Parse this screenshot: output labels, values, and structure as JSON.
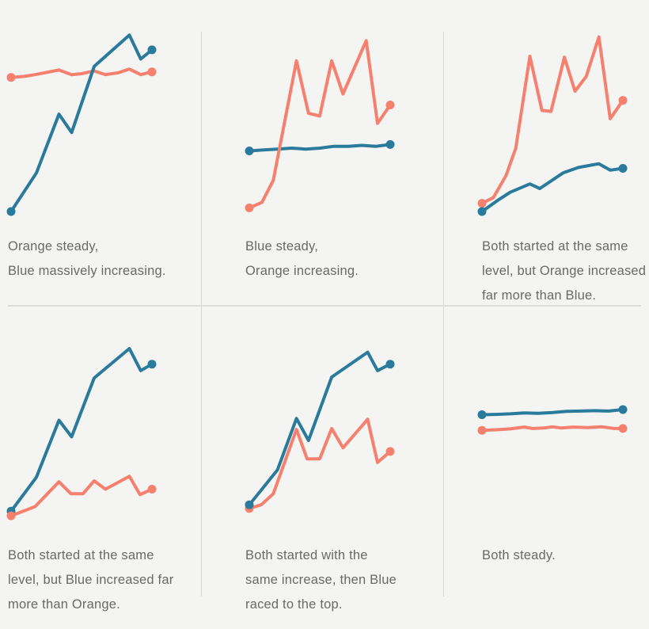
{
  "page": {
    "background": "#f4f4f2",
    "figure_type": "small-multiples line charts, 2 rows x 3 columns, no axes or labels"
  },
  "colors": {
    "blue": "#2a7a9b",
    "orange": "#f5806e",
    "caption": "#696969",
    "divider": "#d8d8d8"
  },
  "chart_data": [
    {
      "type": "line",
      "caption": "Orange steady,\nBlue massively increasing.",
      "x_range": [
        0,
        10
      ],
      "y_range": [
        0,
        100
      ],
      "grid": false,
      "axes": "hidden",
      "legend": "none",
      "series": [
        {
          "name": "Orange",
          "color_key": "orange",
          "end_dots": true,
          "points": [
            [
              0,
              76
            ],
            [
              0.9,
              76.5
            ],
            [
              1.7,
              77.5
            ],
            [
              3.4,
              80
            ],
            [
              4.3,
              77.5
            ],
            [
              5,
              78
            ],
            [
              5.9,
              79.5
            ],
            [
              6.7,
              77.5
            ],
            [
              7.6,
              78.5
            ],
            [
              8.4,
              80.5
            ],
            [
              9.2,
              77.5
            ],
            [
              10,
              79
            ]
          ]
        },
        {
          "name": "Blue",
          "color_key": "blue",
          "end_dots": true,
          "points": [
            [
              0,
              3
            ],
            [
              1.8,
              24
            ],
            [
              3.4,
              56
            ],
            [
              4.3,
              46
            ],
            [
              5.9,
              82
            ],
            [
              8.4,
              99
            ],
            [
              9.2,
              86
            ],
            [
              10,
              91
            ]
          ]
        }
      ]
    },
    {
      "type": "line",
      "caption": "Blue steady,\nOrange increasing.",
      "x_range": [
        0,
        10
      ],
      "y_range": [
        0,
        100
      ],
      "grid": false,
      "axes": "hidden",
      "legend": "none",
      "series": [
        {
          "name": "Blue",
          "color_key": "blue",
          "end_dots": true,
          "points": [
            [
              0,
              36
            ],
            [
              1,
              36.5
            ],
            [
              2,
              37
            ],
            [
              3,
              37.5
            ],
            [
              4,
              37
            ],
            [
              5,
              37.5
            ],
            [
              6,
              38.5
            ],
            [
              7,
              38.5
            ],
            [
              8,
              39
            ],
            [
              9,
              38.5
            ],
            [
              10,
              39.5
            ]
          ]
        },
        {
          "name": "Orange",
          "color_key": "orange",
          "end_dots": true,
          "points": [
            [
              0,
              5
            ],
            [
              0.9,
              8
            ],
            [
              1.7,
              20
            ],
            [
              3.35,
              85
            ],
            [
              4.2,
              56.5
            ],
            [
              5,
              55
            ],
            [
              5.85,
              85
            ],
            [
              6.65,
              67
            ],
            [
              8.3,
              96
            ],
            [
              9.1,
              51
            ],
            [
              10,
              61
            ]
          ]
        }
      ]
    },
    {
      "type": "line",
      "caption": "Both started at the same\nlevel, but Orange increased\nfar more than Blue.",
      "x_range": [
        0,
        10
      ],
      "y_range": [
        0,
        100
      ],
      "grid": false,
      "axes": "hidden",
      "legend": "none",
      "series": [
        {
          "name": "Orange",
          "color_key": "orange",
          "end_dots": true,
          "points": [
            [
              0,
              7.5
            ],
            [
              0.8,
              10.5
            ],
            [
              1.7,
              22.5
            ],
            [
              2.4,
              37.5
            ],
            [
              3.4,
              87.5
            ],
            [
              4.25,
              58
            ],
            [
              4.9,
              57.5
            ],
            [
              5.85,
              87
            ],
            [
              6.6,
              68.5
            ],
            [
              7.4,
              76.5
            ],
            [
              8.3,
              98
            ],
            [
              9.1,
              53.5
            ],
            [
              10,
              63.5
            ]
          ]
        },
        {
          "name": "Blue",
          "color_key": "blue",
          "end_dots": true,
          "points": [
            [
              0,
              3
            ],
            [
              1.1,
              9
            ],
            [
              2,
              13.5
            ],
            [
              3.4,
              18
            ],
            [
              4.1,
              15.5
            ],
            [
              5.75,
              24
            ],
            [
              6.85,
              27
            ],
            [
              8.3,
              29
            ],
            [
              9.1,
              25.5
            ],
            [
              10,
              26.5
            ]
          ]
        }
      ]
    },
    {
      "type": "line",
      "caption": "Both started at the same\nlevel, but Blue increased far\nmore than Orange.",
      "x_range": [
        0,
        10
      ],
      "y_range": [
        0,
        100
      ],
      "grid": false,
      "axes": "hidden",
      "legend": "none",
      "series": [
        {
          "name": "Blue",
          "color_key": "blue",
          "end_dots": true,
          "points": [
            [
              0,
              11.5
            ],
            [
              1.8,
              30
            ],
            [
              3.4,
              61
            ],
            [
              4.3,
              52
            ],
            [
              5.9,
              84
            ],
            [
              8.4,
              100
            ],
            [
              9.2,
              88
            ],
            [
              10,
              91.5
            ]
          ]
        },
        {
          "name": "Orange",
          "color_key": "orange",
          "end_dots": true,
          "points": [
            [
              0,
              9
            ],
            [
              1.7,
              14
            ],
            [
              3.4,
              27.5
            ],
            [
              4.25,
              21
            ],
            [
              5.1,
              21
            ],
            [
              5.9,
              28
            ],
            [
              6.7,
              23.5
            ],
            [
              8.4,
              30.5
            ],
            [
              9.15,
              20.5
            ],
            [
              10,
              23.5
            ]
          ]
        }
      ]
    },
    {
      "type": "line",
      "caption": "Both started with the\nsame increase, then Blue\nraced to the top.",
      "x_range": [
        0,
        10
      ],
      "y_range": [
        0,
        100
      ],
      "grid": false,
      "axes": "hidden",
      "legend": "none",
      "series": [
        {
          "name": "Orange",
          "color_key": "orange",
          "end_dots": true,
          "points": [
            [
              0,
              13
            ],
            [
              0.85,
              15
            ],
            [
              1.7,
              21
            ],
            [
              3.35,
              56
            ],
            [
              4.1,
              40
            ],
            [
              5,
              40
            ],
            [
              5.85,
              56.5
            ],
            [
              6.65,
              46
            ],
            [
              8.4,
              61.5
            ],
            [
              9.1,
              38
            ],
            [
              10,
              44
            ]
          ]
        },
        {
          "name": "Blue",
          "color_key": "blue",
          "end_dots": true,
          "points": [
            [
              0,
              15
            ],
            [
              1,
              24.5
            ],
            [
              2,
              34
            ],
            [
              3.35,
              62
            ],
            [
              4.2,
              50
            ],
            [
              5.85,
              84.5
            ],
            [
              8.4,
              98
            ],
            [
              9.1,
              88
            ],
            [
              10,
              91.5
            ]
          ]
        }
      ]
    },
    {
      "type": "line",
      "caption": "Both steady.",
      "x_range": [
        0,
        10
      ],
      "y_range": [
        0,
        100
      ],
      "grid": false,
      "axes": "hidden",
      "legend": "none",
      "series": [
        {
          "name": "Orange",
          "color_key": "orange",
          "end_dots": true,
          "points": [
            [
              0,
              55.5
            ],
            [
              1,
              55.8
            ],
            [
              2,
              56.3
            ],
            [
              3,
              57.3
            ],
            [
              3.6,
              56.5
            ],
            [
              4.4,
              56.8
            ],
            [
              5,
              57.4
            ],
            [
              5.6,
              56.8
            ],
            [
              6.5,
              57.3
            ],
            [
              7.5,
              57
            ],
            [
              8.5,
              57.4
            ],
            [
              9.3,
              56.6
            ],
            [
              10,
              56.5
            ]
          ]
        },
        {
          "name": "Blue",
          "color_key": "blue",
          "end_dots": true,
          "points": [
            [
              0,
              64
            ],
            [
              1,
              64.2
            ],
            [
              2,
              64.5
            ],
            [
              3,
              65
            ],
            [
              4,
              64.8
            ],
            [
              5,
              65.2
            ],
            [
              6,
              65.8
            ],
            [
              7,
              66
            ],
            [
              8,
              66.2
            ],
            [
              9,
              66
            ],
            [
              10,
              66.8
            ]
          ]
        }
      ]
    }
  ]
}
